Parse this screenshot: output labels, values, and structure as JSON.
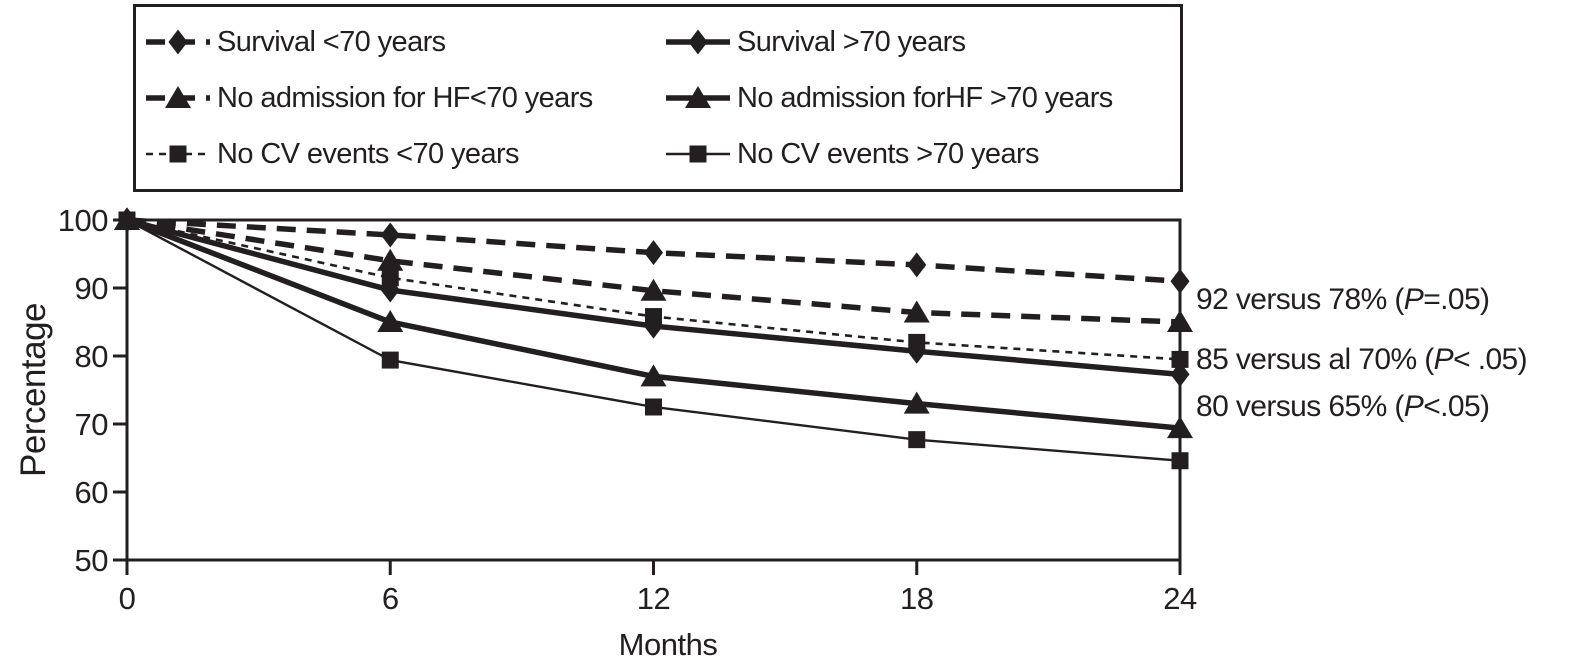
{
  "colors": {
    "ink": "#231f20",
    "background": "#ffffff"
  },
  "legend": {
    "items": [
      {
        "label": "Survival <70 years",
        "line": "dashed-bold",
        "marker": "diamond"
      },
      {
        "label": "Survival  >70 years",
        "line": "solid-bold",
        "marker": "diamond"
      },
      {
        "label": "No admission for HF<70 years",
        "line": "dashed-bold",
        "marker": "triangle"
      },
      {
        "label": "No admission forHF >70 years",
        "line": "solid-bold",
        "marker": "triangle"
      },
      {
        "label": "No CV events <70 years",
        "line": "dotted-thin",
        "marker": "square"
      },
      {
        "label": "No CV events >70 years",
        "line": "solid-thin",
        "marker": "square"
      }
    ]
  },
  "chart_data": {
    "type": "line",
    "x": [
      0,
      6,
      12,
      18,
      24
    ],
    "xticks": [
      "0",
      "6",
      "12",
      "18",
      "24"
    ],
    "yticks": [
      "100",
      "90",
      "80",
      "70",
      "60",
      "50"
    ],
    "xlabel": "Months",
    "ylabel": "Percentage",
    "xlim": [
      0,
      24
    ],
    "ylim": [
      50,
      100
    ],
    "grid": false,
    "legend_position": "top-boxed",
    "series": [
      {
        "name": "Survival <70 years",
        "line": "dashed-bold",
        "marker": "diamond",
        "values": [
          100,
          97.8,
          95.2,
          93.4,
          91.0
        ]
      },
      {
        "name": "Survival  >70 years",
        "line": "solid-bold",
        "marker": "diamond",
        "values": [
          100,
          89.7,
          84.4,
          80.7,
          77.3
        ]
      },
      {
        "name": "No admission for HF<70 years",
        "line": "dashed-bold",
        "marker": "triangle",
        "values": [
          100,
          94.0,
          89.6,
          86.4,
          85.0
        ]
      },
      {
        "name": "No admission forHF >70 years",
        "line": "solid-bold",
        "marker": "triangle",
        "values": [
          100,
          85.0,
          77.0,
          73.0,
          69.4
        ]
      },
      {
        "name": "No CV events <70 years",
        "line": "dotted-thin",
        "marker": "square",
        "values": [
          100,
          91.5,
          85.8,
          82.0,
          79.5
        ]
      },
      {
        "name": "No CV events >70 years",
        "line": "solid-thin",
        "marker": "square",
        "values": [
          100,
          79.4,
          72.5,
          67.7,
          64.6
        ]
      }
    ],
    "annotations": [
      {
        "text": "92 versus 78% (P=.05)",
        "pre": "92 versus 78% (",
        "p": "P",
        "post": "=.05)"
      },
      {
        "text": "85 versus al 70% (P< .05)",
        "pre": "85 versus al 70% (",
        "p": "P",
        "post": "< .05)"
      },
      {
        "text": "80 versus 65% (P<.05)",
        "pre": "80 versus 65% (",
        "p": "P",
        "post": "<.05)"
      }
    ]
  }
}
